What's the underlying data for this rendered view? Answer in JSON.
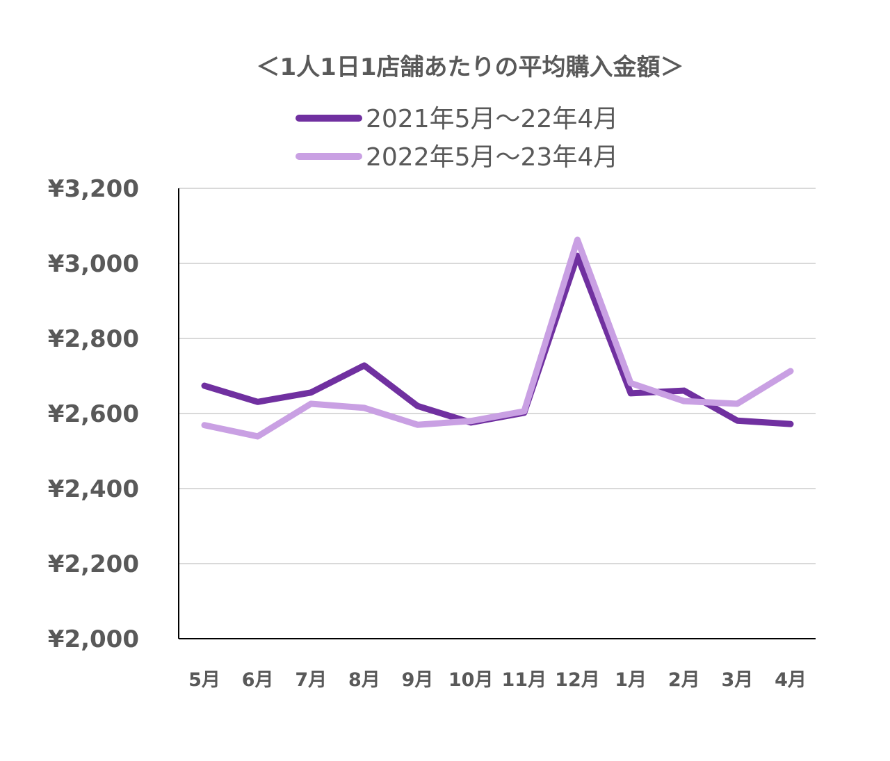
{
  "chart_data": {
    "type": "line",
    "title": "＜1人1日1店舗あたりの平均購入金額＞",
    "xlabel": "",
    "ylabel": "",
    "categories": [
      "5月",
      "6月",
      "7月",
      "8月",
      "9月",
      "10月",
      "11月",
      "12月",
      "1月",
      "2月",
      "3月",
      "4月"
    ],
    "ylim": [
      2000,
      3200
    ],
    "yticks": [
      2000,
      2200,
      2400,
      2600,
      2800,
      3000,
      3200
    ],
    "ytick_labels": [
      "¥2,000",
      "¥2,200",
      "¥2,400",
      "¥2,600",
      "¥2,800",
      "¥3,000",
      "¥3,200"
    ],
    "grid": true,
    "legend_position": "top",
    "series": [
      {
        "name": "2021年5月～22年4月",
        "color": "#7030a0",
        "values": [
          2674,
          2631,
          2656,
          2728,
          2620,
          2576,
          2602,
          3020,
          2654,
          2661,
          2581,
          2572
        ]
      },
      {
        "name": "2022年5月～23年4月",
        "color": "#c9a0e3",
        "values": [
          2569,
          2539,
          2626,
          2615,
          2570,
          2580,
          2606,
          3063,
          2681,
          2633,
          2626,
          2713
        ]
      }
    ]
  }
}
